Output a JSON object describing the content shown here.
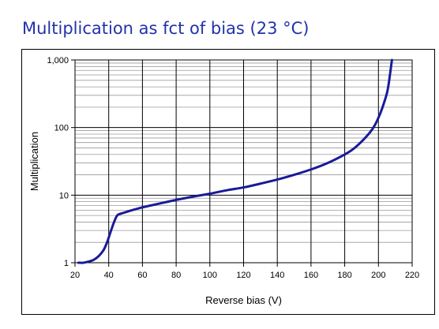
{
  "slide": {
    "title": "Multiplication as fct of bias (23 °C)"
  },
  "chart_data": {
    "type": "line",
    "xlabel": "Reverse bias (V)",
    "ylabel": "Multiplication",
    "xlim": [
      20,
      220
    ],
    "ylim": [
      1,
      1000
    ],
    "yscale": "log",
    "x_ticks": [
      20,
      40,
      60,
      80,
      100,
      120,
      140,
      160,
      180,
      200,
      220
    ],
    "x_tick_labels": [
      "20",
      "40",
      "60",
      "80",
      "100",
      "120",
      "140",
      "160",
      "180",
      "200",
      "220"
    ],
    "y_ticks": [
      1,
      10,
      100,
      1000
    ],
    "y_tick_labels": [
      "1",
      "10",
      "100",
      "1,000"
    ],
    "grid": true,
    "line_color": "#1a1a99",
    "series": [
      {
        "x": [
          22,
          25,
          28,
          31,
          34,
          37,
          39,
          41,
          43,
          45,
          47,
          50,
          55,
          60,
          70,
          80,
          90,
          100,
          110,
          120,
          130,
          140,
          150,
          160,
          170,
          180,
          185,
          190,
          195,
          198,
          201,
          203,
          205,
          206,
          207,
          208
        ],
        "y": [
          1.0,
          1.0,
          1.04,
          1.1,
          1.25,
          1.55,
          2.0,
          2.8,
          3.9,
          5.0,
          5.3,
          5.6,
          6.1,
          6.6,
          7.5,
          8.5,
          9.5,
          10.5,
          11.8,
          13.0,
          14.8,
          17.0,
          20.0,
          24.0,
          30.0,
          40.0,
          48.0,
          62.0,
          85.0,
          110.0,
          160.0,
          220.0,
          320.0,
          430.0,
          650.0,
          1000.0
        ]
      }
    ]
  }
}
